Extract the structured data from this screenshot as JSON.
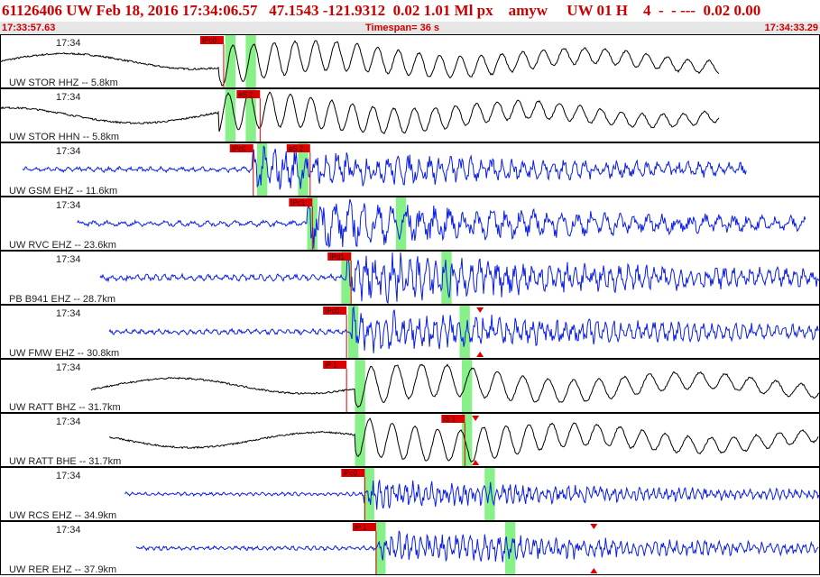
{
  "header": {
    "title": "61126406 UW Feb 18, 2016 17:34:06.57   47.1543 -121.9312  0.02 1.01 Ml px    amyw     UW 01 H    4  -  - ---  0.02 0.00",
    "start_time": "17:33:57.63",
    "timespan": "Timespan= 36 s",
    "end_time": "17:34:33.29"
  },
  "colors": {
    "short_period": "#0a1ee6",
    "broadband": "#000000",
    "pick": "#dd0000",
    "window": "#88f088",
    "panel_border": "#000000"
  },
  "chart_data": {
    "type": "line",
    "title": "",
    "xlabel": "",
    "ylabel": "",
    "x_range_s": [
      0,
      36
    ],
    "grid": false,
    "traces": [
      {
        "label": "UW STOR HHZ -- 5.8km",
        "time_label": "17:34",
        "color": "black",
        "data_start": 0.0,
        "data_end": 31.6,
        "amp": 0.45,
        "freq": 1.1,
        "lowfreq": true,
        "p_time": 9.6,
        "s_time": null,
        "picks": [
          {
            "text": "IPc0",
            "t": 8.8
          }
        ],
        "windows": [
          {
            "t": 9.9,
            "w": 0.45
          },
          {
            "t": 10.8,
            "w": 0.45
          }
        ],
        "markers": []
      },
      {
        "label": "UW STOR HHN -- 5.8km",
        "time_label": "17:34",
        "color": "black",
        "data_start": 0.0,
        "data_end": 31.6,
        "amp": 0.45,
        "freq": 1.1,
        "lowfreq": true,
        "p_time": 9.6,
        "s_time": 10.6,
        "picks": [
          {
            "text": "eS 2",
            "t": 10.4
          }
        ],
        "windows": [
          {
            "t": 9.9,
            "w": 0.45
          },
          {
            "t": 10.8,
            "w": 0.45
          }
        ],
        "markers": []
      },
      {
        "label": "UW GSM EHZ -- 11.6km",
        "time_label": "17:34",
        "color": "blue",
        "data_start": 1.0,
        "data_end": 32.8,
        "amp": 0.45,
        "freq": 2.2,
        "lowfreq": false,
        "p_time": 11.1,
        "s_time": 13.8,
        "picks": [
          {
            "text": "IPc0",
            "t": 10.1
          },
          {
            "text": "eS 2",
            "t": 12.6
          }
        ],
        "windows": [
          {
            "t": 11.3,
            "w": 0.45
          },
          {
            "t": 13.1,
            "w": 0.45
          }
        ],
        "markers": []
      },
      {
        "label": "UW RVC EHZ -- 23.6km",
        "time_label": "17:34",
        "color": "blue",
        "data_start": 3.4,
        "data_end": 35.4,
        "amp": 0.5,
        "freq": 1.6,
        "lowfreq": false,
        "p_time": 13.5,
        "s_time": null,
        "picks": [
          {
            "text": "IPc1",
            "t": 12.7
          }
        ],
        "windows": [
          {
            "t": 13.5,
            "w": 0.45
          },
          {
            "t": 17.4,
            "w": 0.45
          }
        ],
        "markers": []
      },
      {
        "label": "PB B941 EHZ -- 28.7km",
        "time_label": "17:34",
        "color": "blue",
        "data_start": 4.4,
        "data_end": 36.0,
        "amp": 0.55,
        "freq": 2.6,
        "lowfreq": false,
        "p_time": 15.2,
        "s_time": null,
        "picks": [
          {
            "text": "IPd1",
            "t": 14.4
          }
        ],
        "windows": [
          {
            "t": 15.0,
            "w": 0.45
          },
          {
            "t": 19.4,
            "w": 0.45
          }
        ],
        "markers": []
      },
      {
        "label": "UW FMW EHZ -- 30.8km",
        "time_label": "17:34",
        "color": "blue",
        "data_start": 4.8,
        "data_end": 36.0,
        "amp": 0.45,
        "freq": 2.8,
        "lowfreq": false,
        "p_time": 15.4,
        "s_time": null,
        "picks": [
          {
            "text": "IPc0",
            "t": 14.2
          }
        ],
        "windows": [
          {
            "t": 15.3,
            "w": 0.45
          },
          {
            "t": 20.2,
            "w": 0.45
          }
        ],
        "markers": [
          {
            "t": 21.1,
            "dir": "down"
          },
          {
            "t": 21.1,
            "dir": "up"
          }
        ]
      },
      {
        "label": "UW RATT BHZ -- 31.7km",
        "time_label": "17:34",
        "color": "black",
        "data_start": 4.0,
        "data_end": 36.0,
        "amp": 0.45,
        "freq": 0.9,
        "lowfreq": true,
        "p_time": 15.6,
        "s_time": null,
        "picks": [
          {
            "text": "iP 1",
            "t": 14.2
          }
        ],
        "windows": [
          {
            "t": 15.6,
            "w": 0.45
          },
          {
            "t": 20.3,
            "w": 0.45
          }
        ],
        "markers": []
      },
      {
        "label": "UW RATT BHE -- 31.7km",
        "time_label": "17:34",
        "color": "black",
        "data_start": 4.8,
        "data_end": 36.0,
        "amp": 0.45,
        "freq": 1.0,
        "lowfreq": true,
        "p_time": 15.6,
        "s_time": 20.6,
        "picks": [
          {
            "text": "iS 1",
            "t": 19.4
          }
        ],
        "windows": [
          {
            "t": 15.6,
            "w": 0.45
          },
          {
            "t": 20.3,
            "w": 0.45
          }
        ],
        "markers": [
          {
            "t": 20.9,
            "dir": "down"
          },
          {
            "t": 20.9,
            "dir": "up"
          }
        ]
      },
      {
        "label": "UW RCS EHZ -- 34.9km",
        "time_label": "17:34",
        "color": "blue",
        "data_start": 5.5,
        "data_end": 36.0,
        "amp": 0.3,
        "freq": 3.5,
        "lowfreq": false,
        "p_time": 16.0,
        "s_time": null,
        "picks": [
          {
            "text": "iPc0",
            "t": 15.0
          }
        ],
        "windows": [
          {
            "t": 16.0,
            "w": 0.45
          },
          {
            "t": 21.3,
            "w": 0.45
          }
        ],
        "markers": []
      },
      {
        "label": "UW RER EHZ -- 37.9km",
        "time_label": "17:34",
        "color": "blue",
        "data_start": 6.0,
        "data_end": 36.0,
        "amp": 0.35,
        "freq": 3.2,
        "lowfreq": false,
        "p_time": 16.6,
        "s_time": null,
        "picks": [
          {
            "text": "iP 1",
            "t": 15.5
          }
        ],
        "windows": [
          {
            "t": 16.5,
            "w": 0.45
          },
          {
            "t": 22.2,
            "w": 0.45
          }
        ],
        "markers": [
          {
            "t": 26.1,
            "dir": "down"
          },
          {
            "t": 26.1,
            "dir": "up"
          }
        ]
      }
    ]
  }
}
